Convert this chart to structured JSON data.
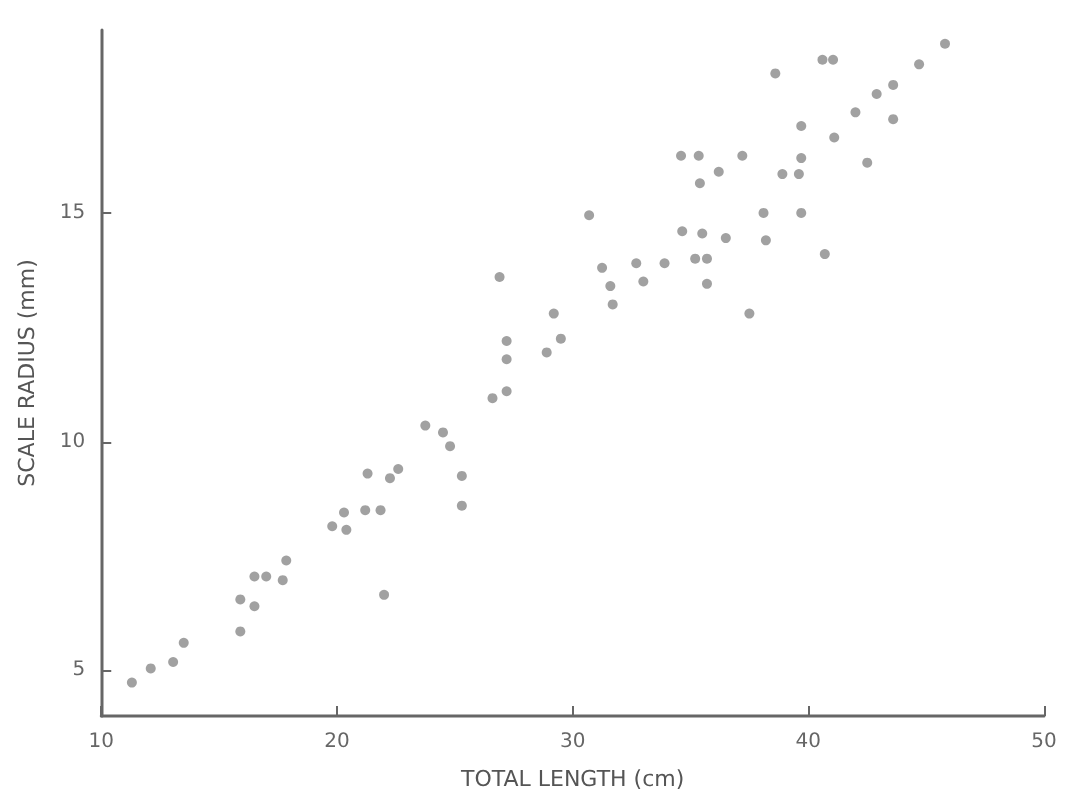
{
  "chart_data": {
    "type": "scatter",
    "xlabel": "TOTAL LENGTH (cm)",
    "ylabel": "SCALE RADIUS (mm)",
    "xlim": [
      10,
      50
    ],
    "xticks": [
      10,
      20,
      30,
      40,
      50
    ],
    "ylim": [
      4,
      19
    ],
    "yticks": [
      5,
      10,
      15
    ],
    "grid": false,
    "marker": "circle",
    "series": [
      {
        "color": "#8a8a8a",
        "x": [
          11.3,
          12.1,
          13.05,
          13.5,
          15.9,
          15.9,
          16.5,
          16.5,
          17.0,
          17.7,
          17.85,
          19.8,
          20.3,
          20.4,
          21.2,
          21.85,
          21.3,
          22.25,
          22.6,
          22.0,
          23.75,
          24.5,
          24.8,
          25.3,
          25.3,
          26.6,
          27.2,
          27.2,
          27.2,
          26.9,
          28.9,
          29.5,
          29.2,
          30.7,
          31.25,
          31.6,
          31.7,
          32.7,
          33.0,
          33.9,
          34.65,
          35.5,
          35.2,
          35.7,
          35.7,
          36.5,
          34.6,
          35.35,
          35.4,
          36.2,
          37.2,
          37.5,
          38.1,
          38.2,
          38.9,
          39.6,
          39.7,
          39.7,
          38.6,
          40.6,
          41.05,
          39.7,
          40.7,
          41.1,
          42.0,
          42.5,
          42.9,
          43.6,
          43.6,
          44.7,
          45.8
        ],
        "values": [
          4.73,
          5.04,
          5.18,
          5.6,
          5.85,
          6.55,
          6.4,
          7.05,
          7.05,
          6.97,
          7.4,
          8.15,
          8.45,
          8.07,
          8.5,
          8.5,
          9.3,
          9.2,
          9.4,
          6.65,
          10.35,
          10.2,
          9.9,
          9.25,
          8.6,
          10.95,
          11.1,
          11.8,
          12.2,
          13.6,
          11.95,
          12.25,
          12.8,
          14.95,
          13.8,
          13.4,
          13.0,
          13.9,
          13.5,
          13.9,
          14.6,
          14.55,
          14.0,
          14.0,
          13.45,
          14.45,
          16.25,
          16.25,
          15.65,
          15.9,
          16.25,
          12.8,
          15.0,
          14.4,
          15.85,
          15.85,
          16.2,
          15.0,
          18.05,
          18.35,
          18.35,
          16.9,
          14.1,
          16.65,
          17.2,
          16.1,
          17.6,
          17.05,
          17.8,
          18.25,
          18.7
        ]
      }
    ]
  }
}
